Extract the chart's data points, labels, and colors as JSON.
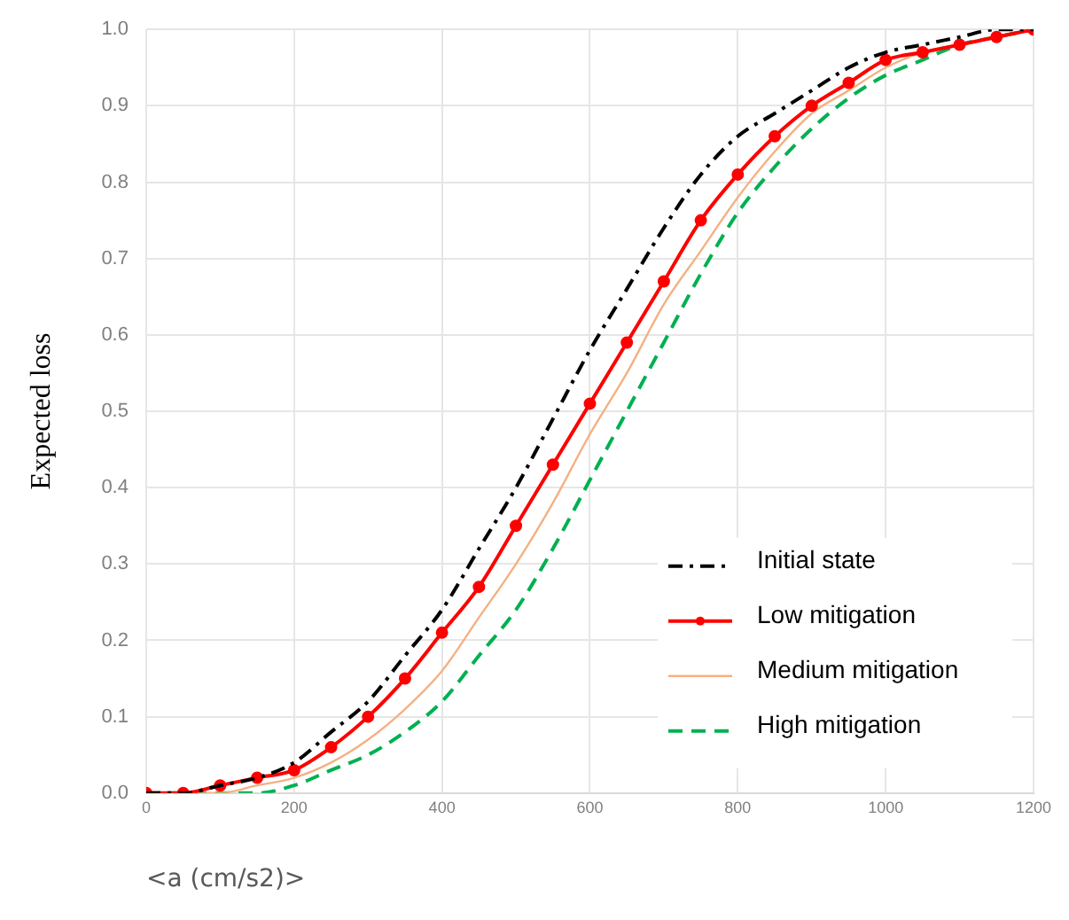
{
  "chart_data": {
    "type": "line",
    "xlabel": "<a (cm/s2)>",
    "ylabel": "Expected loss",
    "x": [
      0,
      50,
      100,
      150,
      200,
      250,
      300,
      350,
      400,
      450,
      500,
      550,
      600,
      650,
      700,
      750,
      800,
      850,
      900,
      950,
      1000,
      1050,
      1100,
      1150,
      1200
    ],
    "series": [
      {
        "name": "Initial state",
        "color": "#000000",
        "line_style": "dashdot",
        "marker": "none",
        "values": [
          0,
          0,
          0.01,
          0.02,
          0.04,
          0.08,
          0.12,
          0.18,
          0.24,
          0.32,
          0.4,
          0.49,
          0.58,
          0.66,
          0.74,
          0.81,
          0.86,
          0.89,
          0.92,
          0.95,
          0.97,
          0.98,
          0.99,
          1,
          1
        ]
      },
      {
        "name": "Low mitigation",
        "color": "#ff0000",
        "line_style": "solid",
        "marker": "circle",
        "values": [
          0,
          0,
          0.01,
          0.02,
          0.03,
          0.06,
          0.1,
          0.15,
          0.21,
          0.27,
          0.35,
          0.43,
          0.51,
          0.59,
          0.67,
          0.75,
          0.81,
          0.86,
          0.9,
          0.93,
          0.96,
          0.97,
          0.98,
          0.99,
          1
        ]
      },
      {
        "name": "Medium mitigation",
        "color": "#f4b183",
        "line_style": "solid",
        "marker": "none",
        "values": [
          0,
          0,
          0,
          0.01,
          0.02,
          0.04,
          0.07,
          0.11,
          0.16,
          0.23,
          0.3,
          0.38,
          0.47,
          0.55,
          0.64,
          0.71,
          0.78,
          0.84,
          0.89,
          0.92,
          0.95,
          0.97,
          0.98,
          0.99,
          1
        ]
      },
      {
        "name": "High mitigation",
        "color": "#00b050",
        "line_style": "dashed",
        "marker": "none",
        "values": [
          0,
          0,
          0,
          0,
          0.01,
          0.03,
          0.05,
          0.08,
          0.12,
          0.18,
          0.24,
          0.32,
          0.41,
          0.5,
          0.59,
          0.68,
          0.76,
          0.82,
          0.87,
          0.91,
          0.94,
          0.96,
          0.98,
          0.99,
          1
        ]
      }
    ],
    "xlim": [
      0,
      1200
    ],
    "xticks": [
      0,
      200,
      400,
      600,
      800,
      1000,
      1200
    ],
    "ylim": [
      0,
      1
    ],
    "yticks": [
      {
        "value": 0,
        "label": "0.0"
      },
      0.1,
      0.2,
      0.3,
      0.4,
      0.5,
      0.6,
      0.7,
      0.8,
      0.9,
      {
        "value": 1,
        "label": "1.0"
      }
    ],
    "grid": true,
    "legend": "bottom right"
  }
}
